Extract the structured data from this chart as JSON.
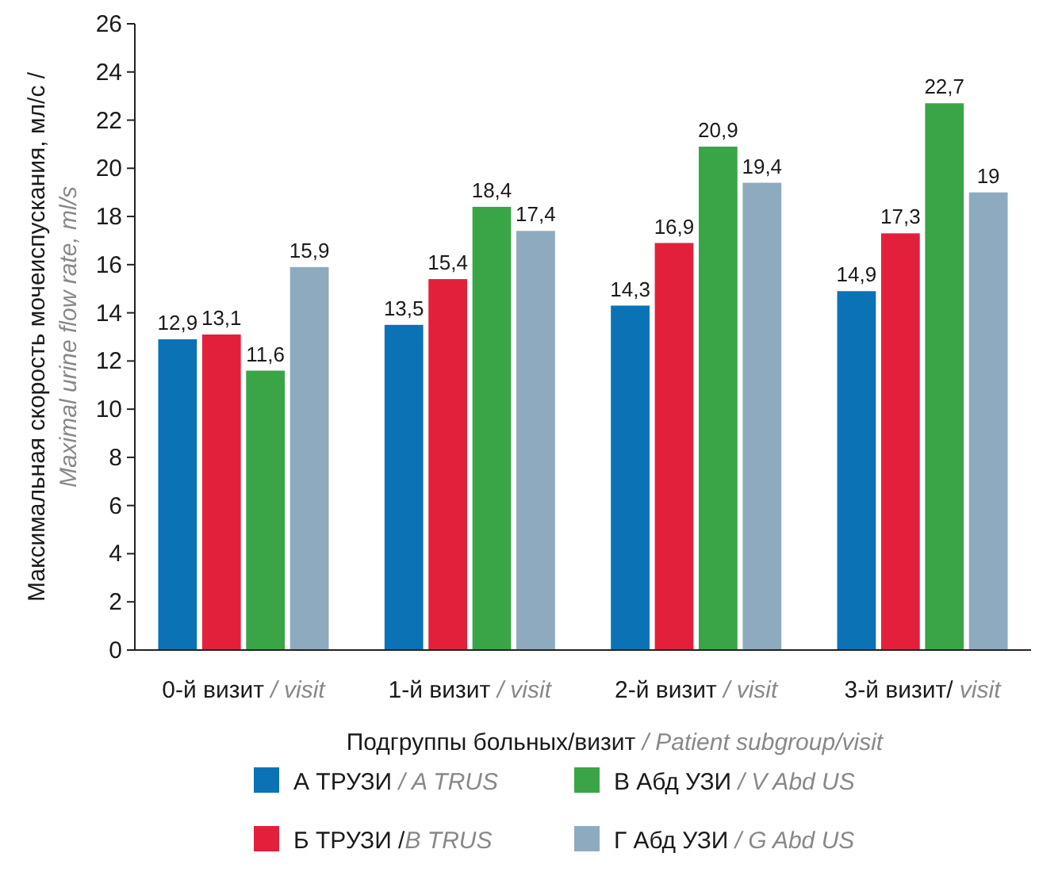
{
  "chart_data": {
    "type": "bar",
    "xlabel": "Подгруппы больных/визит / Patient subgroup/visit",
    "ylabel": "Максимальная скорость мочеиспускания, мл/с /\nMaximal urine flow rate, ml/s",
    "categories": [
      "0-й визит / visit",
      "1-й визит / visit",
      "2-й визит / visit",
      "3-й визит/ visit"
    ],
    "series": [
      {
        "name": "А ТРУЗИ / A TRUS",
        "color": "#0b72b5",
        "values": [
          12.9,
          13.5,
          14.3,
          14.9
        ],
        "value_labels": [
          "12,9",
          "13,5",
          "14,3",
          "14,9"
        ]
      },
      {
        "name": "Б ТРУЗИ /B TRUS",
        "color": "#e3203b",
        "values": [
          13.1,
          15.4,
          16.9,
          17.3
        ],
        "value_labels": [
          "13,1",
          "15,4",
          "16,9",
          "17,3"
        ]
      },
      {
        "name": "В Абд УЗИ / V Abd US",
        "color": "#3aa547",
        "values": [
          11.6,
          18.4,
          20.9,
          22.7
        ],
        "value_labels": [
          "11,6",
          "18,4",
          "20,9",
          "22,7"
        ]
      },
      {
        "name": "Г Абд УЗИ / G Abd US",
        "color": "#8eaabf",
        "values": [
          15.9,
          17.4,
          19.4,
          19
        ],
        "value_labels": [
          "15,9",
          "17,4",
          "19,4",
          "19"
        ]
      }
    ],
    "ylim": [
      0,
      26
    ],
    "yticks": [
      0,
      2,
      4,
      6,
      8,
      10,
      12,
      14,
      16,
      18,
      20,
      22,
      24,
      26
    ],
    "legend": "bottom"
  }
}
